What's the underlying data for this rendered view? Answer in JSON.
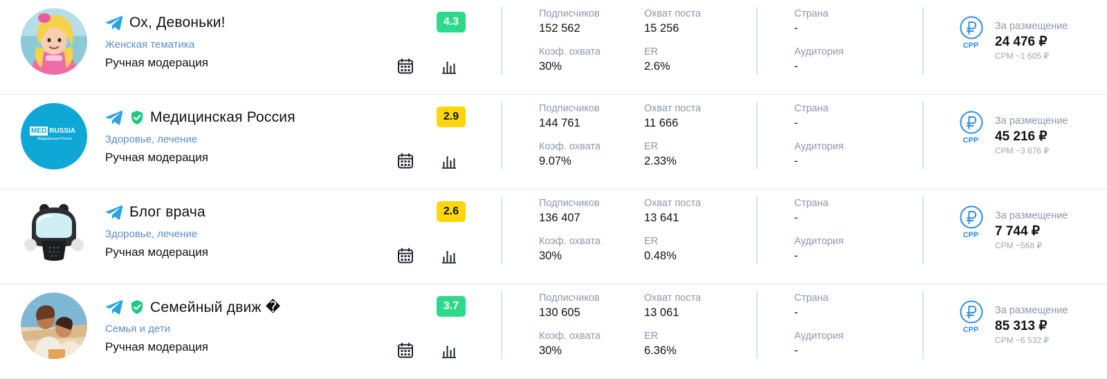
{
  "labels": {
    "subscribers": "Подписчиков",
    "reach": "Охват поста",
    "reach_coef": "Коэф. охвата",
    "er": "ER",
    "country": "Страна",
    "audience": "Аудитория",
    "price_label": "За размещение",
    "cpp": "CPP"
  },
  "colors": {
    "accent": "#2e8be6",
    "category": "#5a8fc7",
    "rating_green": "#2fd98b",
    "rating_yellow": "#ffd60a",
    "verified": "#1fc982",
    "telegram": "#2aa3e0"
  },
  "channels": [
    {
      "name": "Ох, Девоньки!",
      "verified": false,
      "category": "Женская тематика",
      "moderation": "Ручная модерация",
      "rating": "4.3",
      "rating_color": "green",
      "subscribers": "152 562",
      "reach": "15 256",
      "reach_coef": "30%",
      "er": "2.6%",
      "country": "-",
      "audience": "-",
      "price": "24 476 ₽",
      "cpm": "CPM ~1 605 ₽"
    },
    {
      "name": "Медицинская Россия",
      "verified": true,
      "category": "Здоровье, лечение",
      "moderation": "Ручная модерация",
      "rating": "2.9",
      "rating_color": "yellow",
      "subscribers": "144 761",
      "reach": "11 666",
      "reach_coef": "9.07%",
      "er": "2.33%",
      "country": "-",
      "audience": "-",
      "price": "45 216 ₽",
      "cpm": "CPM ~3 876 ₽",
      "logo": {
        "med": "MED",
        "russia": "RUSSIA",
        "sub": "Медицинская Россия"
      }
    },
    {
      "name": "Блог врача",
      "verified": false,
      "category": "Здоровье, лечение",
      "moderation": "Ручная модерация",
      "rating": "2.6",
      "rating_color": "yellow",
      "subscribers": "136 407",
      "reach": "13 641",
      "reach_coef": "30%",
      "er": "0.48%",
      "country": "-",
      "audience": "-",
      "price": "7 744 ₽",
      "cpm": "CPM ~568 ₽"
    },
    {
      "name": "Семейный движ �",
      "verified": true,
      "category": "Семья и дети",
      "moderation": "Ручная модерация",
      "rating": "3.7",
      "rating_color": "green",
      "subscribers": "130 605",
      "reach": "13 061",
      "reach_coef": "30%",
      "er": "6.36%",
      "country": "-",
      "audience": "-",
      "price": "85 313 ₽",
      "cpm": "CPM ~6 532 ₽"
    }
  ]
}
